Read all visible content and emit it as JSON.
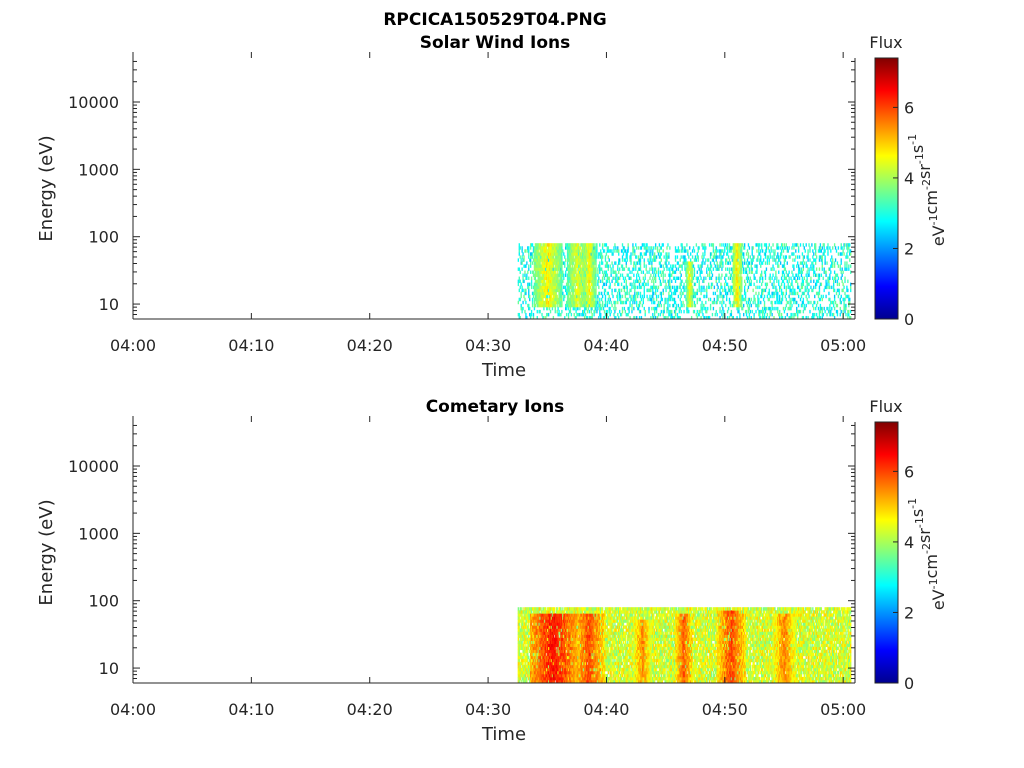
{
  "figure_title": "RPCICA150529T04.PNG",
  "colormap": [
    "#00008f",
    "#0000ff",
    "#0080ff",
    "#00ffff",
    "#80ff80",
    "#ffff00",
    "#ff8000",
    "#ff0000",
    "#800000"
  ],
  "chart_data": [
    {
      "type": "heatmap",
      "title": "Solar Wind Ions",
      "xlabel": "Time",
      "ylabel": "Energy (eV)",
      "y_scale": "log",
      "x_range": [
        "04:00",
        "05:01"
      ],
      "y_range": [
        6,
        45000
      ],
      "x_ticks": [
        "04:00",
        "04:10",
        "04:20",
        "04:30",
        "04:40",
        "04:50",
        "05:00"
      ],
      "y_ticks": [
        "10",
        "100",
        "1000",
        "10000"
      ],
      "colorbar": {
        "label": "Flux",
        "unit": "eV-1cm-2sr-1s-1",
        "range": [
          0,
          7.4
        ],
        "ticks": [
          "0",
          "2",
          "4",
          "6"
        ]
      },
      "data_window": {
        "time_start": "04:32:30",
        "time_end": "05:00:40",
        "energy_min": 6,
        "energy_max": 80
      },
      "clusters": [
        {
          "time": "04:35:00",
          "half_width_min": 1.2,
          "energy_lo": 9,
          "energy_hi": 75,
          "flux": 4.7
        },
        {
          "time": "04:37:30",
          "half_width_min": 0.9,
          "energy_lo": 9,
          "energy_hi": 75,
          "flux": 4.4
        },
        {
          "time": "04:38:30",
          "half_width_min": 0.6,
          "energy_lo": 9,
          "energy_hi": 75,
          "flux": 4.6
        },
        {
          "time": "04:47:00",
          "half_width_min": 0.3,
          "energy_lo": 9,
          "energy_hi": 40,
          "flux": 4.6
        },
        {
          "time": "04:51:00",
          "half_width_min": 0.4,
          "energy_lo": 9,
          "energy_hi": 80,
          "flux": 4.8
        }
      ],
      "background_flux": 3.0,
      "background_density": 0.32
    },
    {
      "type": "heatmap",
      "title": "Cometary Ions",
      "xlabel": "Time",
      "ylabel": "Energy (eV)",
      "y_scale": "log",
      "x_range": [
        "04:00",
        "05:01"
      ],
      "y_range": [
        6,
        45000
      ],
      "x_ticks": [
        "04:00",
        "04:10",
        "04:20",
        "04:30",
        "04:40",
        "04:50",
        "05:00"
      ],
      "y_ticks": [
        "10",
        "100",
        "1000",
        "10000"
      ],
      "colorbar": {
        "label": "Flux",
        "unit": "eV-1cm-2sr-1s-1",
        "range": [
          0,
          7.4
        ],
        "ticks": [
          "0",
          "2",
          "4",
          "6"
        ]
      },
      "data_window": {
        "time_start": "04:32:30",
        "time_end": "05:00:40",
        "energy_min": 6,
        "energy_max": 80
      },
      "clusters": [
        {
          "time": "04:35:30",
          "half_width_min": 2.0,
          "energy_lo": 6,
          "energy_hi": 60,
          "flux": 6.4
        },
        {
          "time": "04:38:30",
          "half_width_min": 1.3,
          "energy_lo": 6,
          "energy_hi": 60,
          "flux": 6.0
        },
        {
          "time": "04:43:00",
          "half_width_min": 0.8,
          "energy_lo": 6,
          "energy_hi": 50,
          "flux": 5.5
        },
        {
          "time": "04:46:30",
          "half_width_min": 0.8,
          "energy_lo": 6,
          "energy_hi": 60,
          "flux": 5.8
        },
        {
          "time": "04:50:30",
          "half_width_min": 1.2,
          "energy_lo": 6,
          "energy_hi": 70,
          "flux": 6.0
        },
        {
          "time": "04:55:00",
          "half_width_min": 1.0,
          "energy_lo": 6,
          "energy_hi": 60,
          "flux": 5.6
        }
      ],
      "background_flux": 4.3,
      "background_density": 0.88
    }
  ]
}
